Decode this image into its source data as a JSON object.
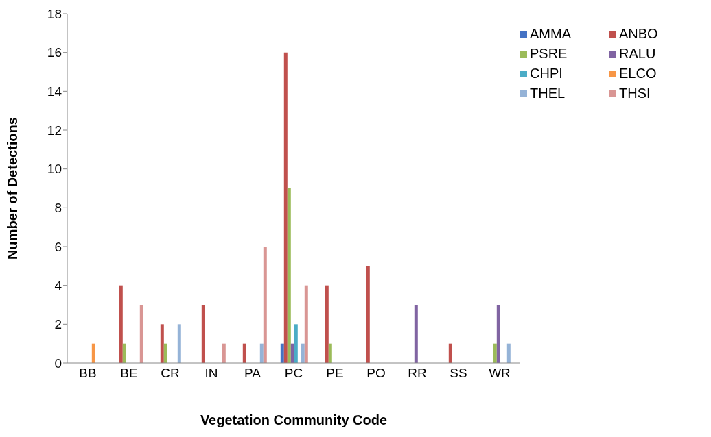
{
  "chart_data": {
    "type": "bar",
    "xlabel": "Vegetation Community Code",
    "ylabel": "Number of Detections",
    "categories": [
      "BB",
      "BE",
      "CR",
      "IN",
      "PA",
      "PC",
      "PE",
      "PO",
      "RR",
      "SS",
      "WR"
    ],
    "series": [
      {
        "name": "AMMA",
        "color": "#4472c4",
        "values": [
          null,
          null,
          null,
          null,
          null,
          1,
          null,
          null,
          null,
          null,
          null
        ]
      },
      {
        "name": "ANBO",
        "color": "#c0504d",
        "values": [
          null,
          4,
          2,
          3,
          1,
          16,
          4,
          5,
          null,
          1,
          null
        ]
      },
      {
        "name": "PSRE",
        "color": "#9bbb59",
        "values": [
          null,
          1,
          1,
          null,
          null,
          9,
          1,
          null,
          null,
          null,
          1
        ]
      },
      {
        "name": "RALU",
        "color": "#8064a2",
        "values": [
          null,
          null,
          null,
          null,
          null,
          1,
          null,
          null,
          3,
          null,
          3
        ]
      },
      {
        "name": "CHPI",
        "color": "#4bacc6",
        "values": [
          null,
          null,
          null,
          null,
          null,
          2,
          null,
          null,
          null,
          null,
          null
        ]
      },
      {
        "name": "ELCO",
        "color": "#f79646",
        "values": [
          1,
          null,
          null,
          null,
          null,
          null,
          null,
          null,
          null,
          null,
          null
        ]
      },
      {
        "name": "THEL",
        "color": "#95b3d7",
        "values": [
          null,
          null,
          2,
          null,
          1,
          1,
          null,
          null,
          null,
          null,
          1
        ]
      },
      {
        "name": "THSI",
        "color": "#d99694",
        "values": [
          null,
          3,
          null,
          1,
          6,
          4,
          null,
          null,
          null,
          null,
          null
        ]
      }
    ],
    "ylim": [
      0,
      18
    ],
    "yticks": [
      0,
      2,
      4,
      6,
      8,
      10,
      12,
      14,
      16,
      18
    ],
    "grid": false,
    "legend": "top right"
  }
}
